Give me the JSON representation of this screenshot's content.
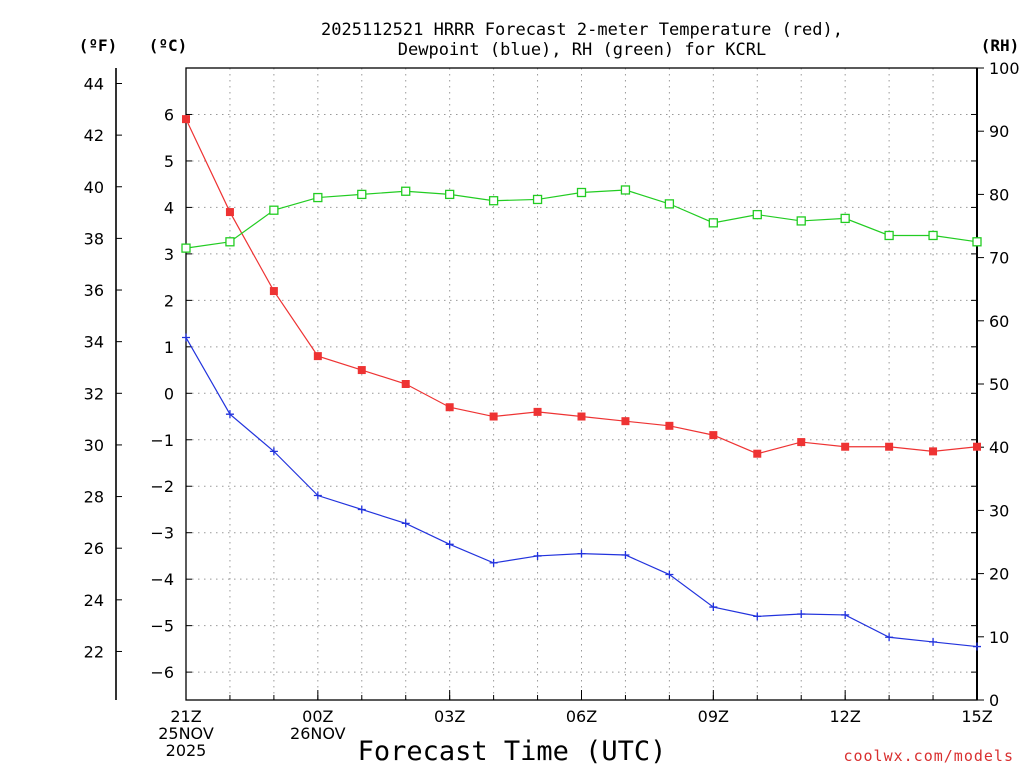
{
  "chart_data": {
    "type": "line",
    "title_line1": "2025112521 HRRR Forecast 2-meter Temperature (red),",
    "title_line2": "Dewpoint (blue), RH (green) for KCRL",
    "xlabel": "Forecast Time (UTC)",
    "unit_f": "(ºF)",
    "unit_c": "(ºC)",
    "unit_rh": "(RH)",
    "credit": "coolwx.com/models",
    "x_hours": [
      0,
      1,
      2,
      3,
      4,
      5,
      6,
      7,
      8,
      9,
      10,
      11,
      12,
      13,
      14,
      15,
      16,
      17,
      18
    ],
    "xlim": [
      0,
      18
    ],
    "x_ticks": [
      {
        "h": 0,
        "lines": [
          "21Z",
          "25NOV",
          "2025"
        ]
      },
      {
        "h": 3,
        "lines": [
          "00Z",
          "26NOV"
        ]
      },
      {
        "h": 6,
        "lines": [
          "03Z"
        ]
      },
      {
        "h": 9,
        "lines": [
          "06Z"
        ]
      },
      {
        "h": 12,
        "lines": [
          "09Z"
        ]
      },
      {
        "h": 15,
        "lines": [
          "12Z"
        ]
      },
      {
        "h": 18,
        "lines": [
          "15Z"
        ]
      }
    ],
    "c_axis": {
      "ylim": [
        -6.6,
        7.0
      ],
      "ticks": [
        -6,
        -5,
        -4,
        -3,
        -2,
        -1,
        0,
        1,
        2,
        3,
        4,
        5,
        6
      ]
    },
    "f_axis": {
      "ticks": [
        22,
        24,
        26,
        28,
        30,
        32,
        34,
        36,
        38,
        40,
        42,
        44
      ]
    },
    "rh_axis": {
      "ylim": [
        0,
        100
      ],
      "ticks": [
        0,
        10,
        20,
        30,
        40,
        50,
        60,
        70,
        80,
        90,
        100
      ]
    },
    "series": [
      {
        "name": "Temperature",
        "axis": "C",
        "color": "#ee3333",
        "marker": "filled-square",
        "values": [
          5.9,
          3.9,
          2.2,
          0.8,
          0.5,
          0.2,
          -0.3,
          -0.5,
          -0.4,
          -0.5,
          -0.6,
          -0.7,
          -0.9,
          -1.3,
          -1.05,
          -1.15,
          -1.15,
          -1.25,
          -1.15
        ]
      },
      {
        "name": "Dewpoint",
        "axis": "C",
        "color": "#2233dd",
        "marker": "plus",
        "values": [
          1.2,
          -0.45,
          -1.25,
          -2.2,
          -2.5,
          -2.8,
          -3.25,
          -3.65,
          -3.5,
          -3.45,
          -3.48,
          -3.9,
          -4.6,
          -4.8,
          -4.75,
          -4.77,
          -5.25,
          -5.35,
          -5.45
        ]
      },
      {
        "name": "RH",
        "axis": "RH",
        "color": "#22cc22",
        "marker": "open-square",
        "values": [
          71.5,
          72.5,
          77.5,
          79.5,
          80.0,
          80.5,
          80.0,
          79.0,
          79.2,
          80.3,
          80.7,
          78.5,
          75.5,
          76.8,
          75.8,
          76.2,
          73.5,
          73.5,
          72.5
        ]
      }
    ]
  }
}
